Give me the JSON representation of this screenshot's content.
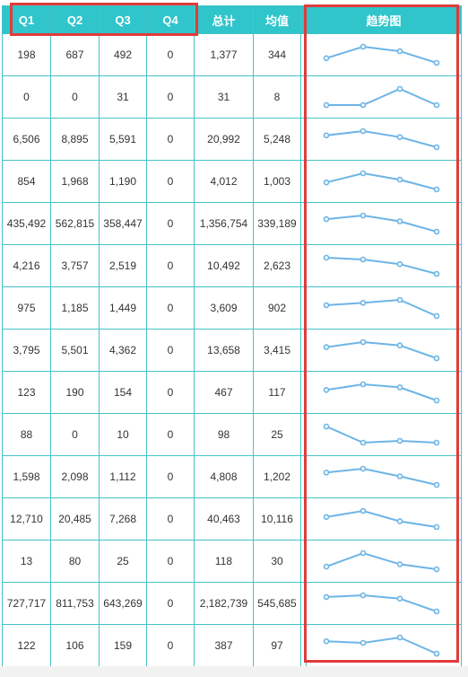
{
  "table": {
    "headers": {
      "q1": "Q1",
      "q2": "Q2",
      "q3": "Q3",
      "q4": "Q4",
      "total": "总计",
      "avg": "均值",
      "trend": "趋势图"
    },
    "rows": [
      {
        "q1": "198",
        "q2": "687",
        "q3": "492",
        "q4": "0",
        "total": "1,377",
        "avg": "344"
      },
      {
        "q1": "0",
        "q2": "0",
        "q3": "31",
        "q4": "0",
        "total": "31",
        "avg": "8"
      },
      {
        "q1": "6,506",
        "q2": "8,895",
        "q3": "5,591",
        "q4": "0",
        "total": "20,992",
        "avg": "5,248"
      },
      {
        "q1": "854",
        "q2": "1,968",
        "q3": "1,190",
        "q4": "0",
        "total": "4,012",
        "avg": "1,003"
      },
      {
        "q1": "435,492",
        "q2": "562,815",
        "q3": "358,447",
        "q4": "0",
        "total": "1,356,754",
        "avg": "339,189"
      },
      {
        "q1": "4,216",
        "q2": "3,757",
        "q3": "2,519",
        "q4": "0",
        "total": "10,492",
        "avg": "2,623"
      },
      {
        "q1": "975",
        "q2": "1,185",
        "q3": "1,449",
        "q4": "0",
        "total": "3,609",
        "avg": "902"
      },
      {
        "q1": "3,795",
        "q2": "5,501",
        "q3": "4,362",
        "q4": "0",
        "total": "13,658",
        "avg": "3,415"
      },
      {
        "q1": "123",
        "q2": "190",
        "q3": "154",
        "q4": "0",
        "total": "467",
        "avg": "117"
      },
      {
        "q1": "88",
        "q2": "0",
        "q3": "10",
        "q4": "0",
        "total": "98",
        "avg": "25"
      },
      {
        "q1": "1,598",
        "q2": "2,098",
        "q3": "1,112",
        "q4": "0",
        "total": "4,808",
        "avg": "1,202"
      },
      {
        "q1": "12,710",
        "q2": "20,485",
        "q3": "7,268",
        "q4": "0",
        "total": "40,463",
        "avg": "10,116"
      },
      {
        "q1": "13",
        "q2": "80",
        "q3": "25",
        "q4": "0",
        "total": "118",
        "avg": "30"
      },
      {
        "q1": "727,717",
        "q2": "811,753",
        "q3": "643,269",
        "q4": "0",
        "total": "2,182,739",
        "avg": "545,685"
      },
      {
        "q1": "122",
        "q2": "106",
        "q3": "159",
        "q4": "0",
        "total": "387",
        "avg": "97"
      }
    ]
  },
  "colors": {
    "header_bg": "#2fc5ca",
    "border": "#45c3c7",
    "sparkline": "#6cb5e6",
    "highlight": "#e03b3b"
  }
}
